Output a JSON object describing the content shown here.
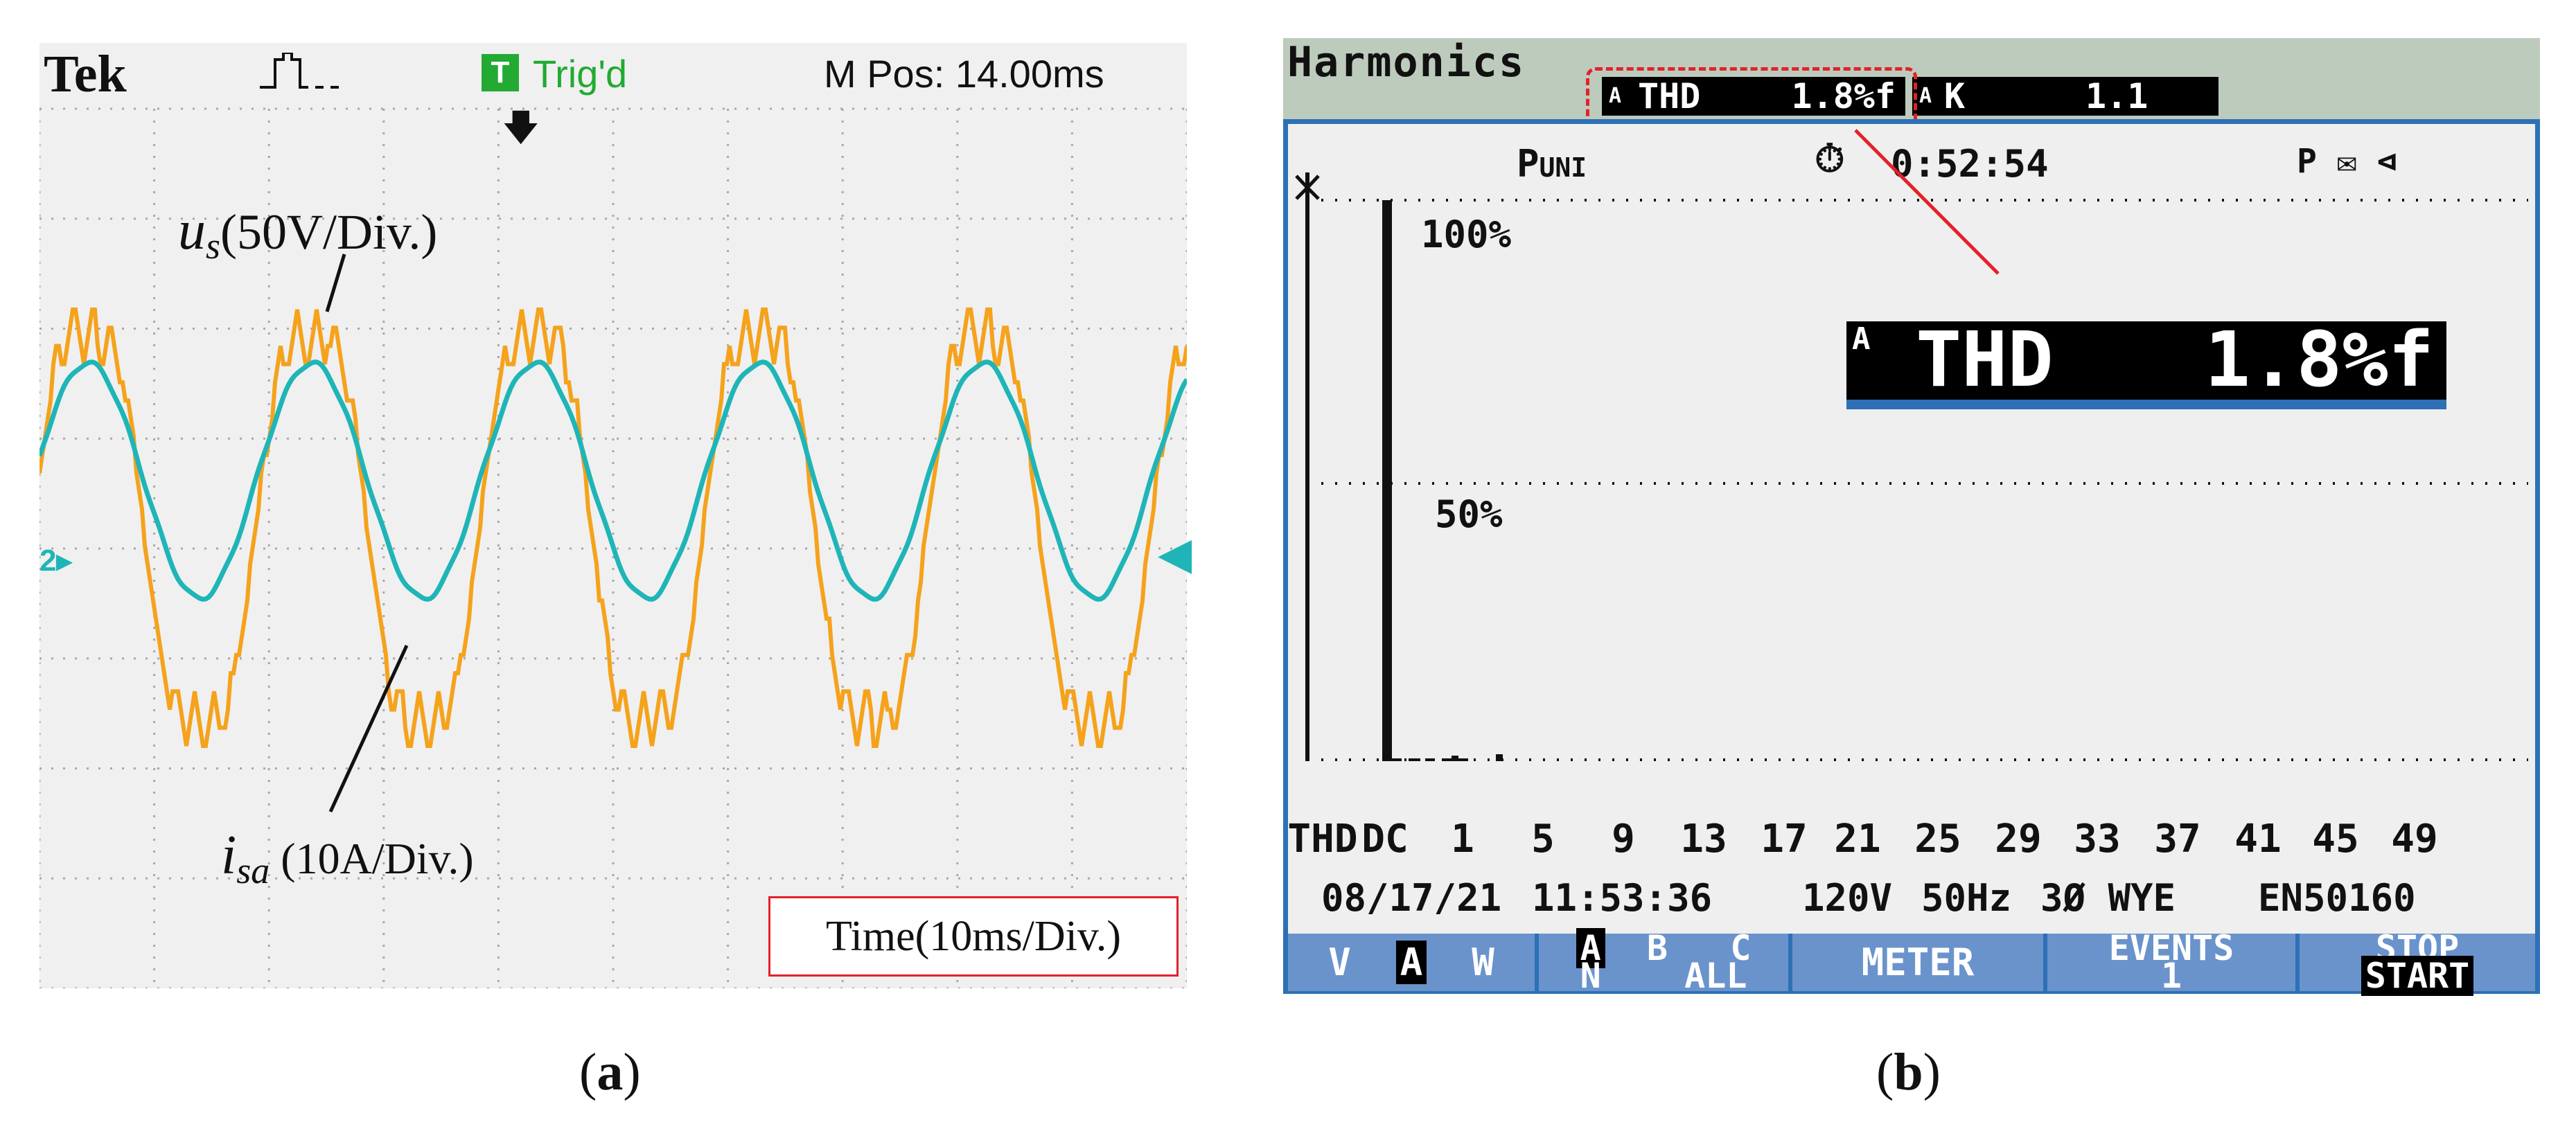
{
  "scope": {
    "logo": "Tek",
    "acq_icon": "acquisition-run-icon",
    "trigger_badge": "T",
    "trigger_status": "Trig'd",
    "m_pos": "M Pos: 14.00ms",
    "voltage_label": {
      "symbol": "u",
      "subscript": "s",
      "scale": "(50V/Div.)"
    },
    "current_label": {
      "symbol": "i",
      "subscript": "sa",
      "scale": " (10A/Div.)"
    },
    "time_scale": "Time(10ms/Div.)",
    "channel_marker": "2▸",
    "colors": {
      "voltage": "#f5a21c",
      "current": "#1fb5b8",
      "grid": "#a8a8a8",
      "background": "#f0f0f0"
    }
  },
  "meter": {
    "title": "Harmonics",
    "header_thd": {
      "phase": "A",
      "label": "THD",
      "value": "1.8%f"
    },
    "header_k": {
      "phase": "A",
      "label": "K",
      "value": "1.1"
    },
    "mode": {
      "main": "P",
      "sub": "UNI"
    },
    "clock_icon": "⏱",
    "elapsed": "0:52:54",
    "status_icons": "P ✉ ⊲",
    "y_labels": [
      "100%",
      "50%"
    ],
    "big_readout": {
      "phase": "A",
      "label": "THD",
      "value": "1.8%f"
    },
    "x_labels": [
      "THD",
      "DC",
      "1",
      "5",
      "9",
      "13",
      "17",
      "21",
      "25",
      "29",
      "33",
      "37",
      "41",
      "45",
      "49"
    ],
    "status_bar": {
      "date": "08/17/21",
      "time": "11:53:36",
      "voltage": "120V",
      "freq": "50Hz",
      "config": "3Ø WYE",
      "standard": "EN50160"
    },
    "softkeys": {
      "vaw": {
        "v": "V",
        "a": "A",
        "w": "W"
      },
      "phase": {
        "a": "A",
        "b": "B",
        "c": "C",
        "n": "N",
        "all": "ALL"
      },
      "meter": "METER",
      "events": {
        "label": "EVENTS",
        "count": "1"
      },
      "stop_start": {
        "stop": "STOP",
        "start": "START"
      }
    },
    "colors": {
      "header": "#bdcbbd",
      "frame": "#2d70b5",
      "softkey": "#6a93cc",
      "highlight": "#e3212b"
    }
  },
  "captions": {
    "a": [
      "(",
      "a",
      ")"
    ],
    "b": [
      "(",
      "b",
      ")"
    ]
  }
}
